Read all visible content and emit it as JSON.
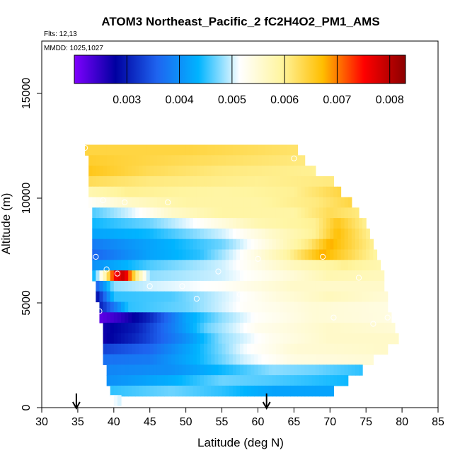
{
  "chart_data": {
    "type": "heatmap",
    "title": "ATOM3 Northeast_Pacific_2 fC2H4O2_PM1_AMS",
    "flights_text": "Flts: 12,13",
    "mmdd_text": "MMDD: 1025,1027",
    "xlabel": "Latitude (deg N)",
    "ylabel": "Altitude (m)",
    "xlim": [
      30,
      85
    ],
    "ylim": [
      0,
      17500
    ],
    "xticks": [
      30,
      35,
      40,
      45,
      50,
      55,
      60,
      65,
      70,
      75,
      80,
      85
    ],
    "xtick_labels": [
      "30",
      "35",
      "40",
      "45",
      "50",
      "55",
      "60",
      "65",
      "70",
      "75",
      "80",
      "85"
    ],
    "yticks": [
      0,
      5000,
      10000,
      15000
    ],
    "ytick_labels": [
      "0",
      "5000",
      "10000",
      "15000"
    ],
    "colorbar": {
      "range": [
        0.002,
        0.0083
      ],
      "ticks": [
        0.003,
        0.004,
        0.005,
        0.006,
        0.007,
        0.008
      ],
      "tick_labels": [
        "0.003",
        "0.004",
        "0.005",
        "0.006",
        "0.007",
        "0.008"
      ],
      "colors": [
        "#7f00ff",
        "#0000a0",
        "#1e64f0",
        "#00b4ff",
        "#ffffff",
        "#fff5a0",
        "#ffbe00",
        "#ff0000",
        "#8b0000"
      ]
    },
    "arrows": [
      34.8,
      61.2
    ],
    "layers": [
      {
        "alt": 12300,
        "lat_min": 36.0,
        "lat_max": 65.5,
        "points": [
          [
            36.0,
            0.0064
          ],
          [
            50.0,
            0.0064
          ],
          [
            65.5,
            0.0062
          ]
        ]
      },
      {
        "alt": 11800,
        "lat_min": 36.5,
        "lat_max": 66.5,
        "points": [
          [
            36.5,
            0.0065
          ],
          [
            50.0,
            0.0063
          ],
          [
            66.5,
            0.0061
          ]
        ]
      },
      {
        "alt": 11300,
        "lat_min": 36.5,
        "lat_max": 68.0,
        "points": [
          [
            36.5,
            0.0066
          ],
          [
            45.0,
            0.0063
          ],
          [
            55.0,
            0.0061
          ],
          [
            68.0,
            0.006
          ]
        ]
      },
      {
        "alt": 10800,
        "lat_min": 36.5,
        "lat_max": 70.5,
        "points": [
          [
            36.5,
            0.0063
          ],
          [
            45.0,
            0.0061
          ],
          [
            60.0,
            0.006
          ],
          [
            70.5,
            0.0061
          ]
        ]
      },
      {
        "alt": 10300,
        "lat_min": 36.5,
        "lat_max": 71.5,
        "points": [
          [
            36.5,
            0.0058
          ],
          [
            42.0,
            0.006
          ],
          [
            55.0,
            0.0059
          ],
          [
            65.0,
            0.006
          ],
          [
            71.5,
            0.0064
          ]
        ]
      },
      {
        "alt": 9800,
        "lat_min": 36.5,
        "lat_max": 73.0,
        "points": [
          [
            36.5,
            0.0052
          ],
          [
            42.0,
            0.0056
          ],
          [
            50.0,
            0.0059
          ],
          [
            60.0,
            0.0059
          ],
          [
            68.0,
            0.0061
          ],
          [
            73.0,
            0.0064
          ]
        ]
      },
      {
        "alt": 9300,
        "lat_min": 37.0,
        "lat_max": 74.0,
        "points": [
          [
            37.0,
            0.0046
          ],
          [
            42.0,
            0.005
          ],
          [
            48.0,
            0.0056
          ],
          [
            55.0,
            0.0059
          ],
          [
            65.0,
            0.0059
          ],
          [
            70.0,
            0.0063
          ],
          [
            74.0,
            0.0061
          ]
        ]
      },
      {
        "alt": 8800,
        "lat_min": 37.0,
        "lat_max": 75.0,
        "points": [
          [
            37.0,
            0.0044
          ],
          [
            45.0,
            0.0047
          ],
          [
            52.0,
            0.0052
          ],
          [
            60.0,
            0.0058
          ],
          [
            68.0,
            0.006
          ],
          [
            71.0,
            0.0066
          ],
          [
            75.0,
            0.006
          ]
        ]
      },
      {
        "alt": 8300,
        "lat_min": 37.0,
        "lat_max": 75.5,
        "points": [
          [
            37.0,
            0.0042
          ],
          [
            45.0,
            0.0044
          ],
          [
            55.0,
            0.005
          ],
          [
            62.0,
            0.0056
          ],
          [
            68.0,
            0.006
          ],
          [
            71.0,
            0.0067
          ],
          [
            75.5,
            0.006
          ]
        ]
      },
      {
        "alt": 7800,
        "lat_min": 37.0,
        "lat_max": 76.0,
        "points": [
          [
            37.0,
            0.0038
          ],
          [
            45.0,
            0.0042
          ],
          [
            55.0,
            0.0047
          ],
          [
            62.0,
            0.0055
          ],
          [
            67.0,
            0.0061
          ],
          [
            70.0,
            0.0068
          ],
          [
            76.0,
            0.006
          ]
        ]
      },
      {
        "alt": 7300,
        "lat_min": 37.0,
        "lat_max": 76.5,
        "points": [
          [
            37.0,
            0.0036
          ],
          [
            45.0,
            0.0042
          ],
          [
            52.0,
            0.0045
          ],
          [
            58.0,
            0.0052
          ],
          [
            64.0,
            0.0059
          ],
          [
            69.0,
            0.0068
          ],
          [
            76.5,
            0.0059
          ]
        ]
      },
      {
        "alt": 6800,
        "lat_min": 37.0,
        "lat_max": 77.0,
        "points": [
          [
            37.0,
            0.004
          ],
          [
            45.0,
            0.0046
          ],
          [
            55.0,
            0.005
          ],
          [
            65.0,
            0.0057
          ],
          [
            72.0,
            0.006
          ],
          [
            77.0,
            0.0058
          ]
        ]
      },
      {
        "alt": 6300,
        "lat_min": 37.0,
        "lat_max": 77.5,
        "points": [
          [
            37.0,
            0.0042
          ],
          [
            39.0,
            0.006
          ],
          [
            40.0,
            0.0075
          ],
          [
            41.5,
            0.0079
          ],
          [
            43.0,
            0.0062
          ],
          [
            45.0,
            0.0048
          ],
          [
            55.0,
            0.005
          ],
          [
            65.0,
            0.0055
          ],
          [
            70.0,
            0.0058
          ],
          [
            77.5,
            0.0057
          ]
        ]
      },
      {
        "alt": 5800,
        "lat_min": 37.5,
        "lat_max": 77.5,
        "points": [
          [
            37.5,
            0.0035
          ],
          [
            40.0,
            0.0048
          ],
          [
            45.0,
            0.005
          ],
          [
            55.0,
            0.0052
          ],
          [
            65.0,
            0.0056
          ],
          [
            77.5,
            0.0056
          ]
        ]
      },
      {
        "alt": 5300,
        "lat_min": 37.5,
        "lat_max": 78.0,
        "points": [
          [
            37.5,
            0.0028
          ],
          [
            40.0,
            0.0045
          ],
          [
            48.0,
            0.0046
          ],
          [
            55.0,
            0.005
          ],
          [
            62.0,
            0.0054
          ],
          [
            70.0,
            0.0057
          ],
          [
            78.0,
            0.0055
          ]
        ]
      },
      {
        "alt": 4800,
        "lat_min": 38.0,
        "lat_max": 78.0,
        "points": [
          [
            38.0,
            0.003
          ],
          [
            42.0,
            0.0045
          ],
          [
            50.0,
            0.0047
          ],
          [
            58.0,
            0.0052
          ],
          [
            68.0,
            0.0055
          ],
          [
            78.0,
            0.0054
          ]
        ]
      },
      {
        "alt": 4300,
        "lat_min": 38.0,
        "lat_max": 78.5,
        "points": [
          [
            38.0,
            0.0022
          ],
          [
            41.0,
            0.0025
          ],
          [
            45.0,
            0.0031
          ],
          [
            50.0,
            0.0042
          ],
          [
            55.0,
            0.0048
          ],
          [
            60.0,
            0.0052
          ],
          [
            68.0,
            0.0055
          ],
          [
            78.5,
            0.0054
          ]
        ]
      },
      {
        "alt": 3800,
        "lat_min": 38.5,
        "lat_max": 79.0,
        "points": [
          [
            38.5,
            0.0027
          ],
          [
            43.0,
            0.003
          ],
          [
            48.0,
            0.0038
          ],
          [
            53.0,
            0.0047
          ],
          [
            60.0,
            0.0053
          ],
          [
            70.0,
            0.0056
          ],
          [
            79.0,
            0.0055
          ]
        ]
      },
      {
        "alt": 3300,
        "lat_min": 38.5,
        "lat_max": 79.5,
        "points": [
          [
            38.5,
            0.0027
          ],
          [
            43.0,
            0.0031
          ],
          [
            50.0,
            0.004
          ],
          [
            55.0,
            0.0048
          ],
          [
            62.0,
            0.0053
          ],
          [
            70.0,
            0.0056
          ],
          [
            79.5,
            0.0056
          ]
        ]
      },
      {
        "alt": 2800,
        "lat_min": 38.5,
        "lat_max": 78.0,
        "points": [
          [
            38.5,
            0.0033
          ],
          [
            45.0,
            0.0036
          ],
          [
            52.0,
            0.0044
          ],
          [
            58.0,
            0.0051
          ],
          [
            65.0,
            0.0055
          ],
          [
            78.0,
            0.0056
          ]
        ]
      },
      {
        "alt": 2300,
        "lat_min": 38.5,
        "lat_max": 76.0,
        "points": [
          [
            38.5,
            0.0037
          ],
          [
            45.0,
            0.0038
          ],
          [
            52.0,
            0.0044
          ],
          [
            58.0,
            0.005
          ],
          [
            65.0,
            0.0054
          ],
          [
            76.0,
            0.0055
          ]
        ]
      },
      {
        "alt": 1800,
        "lat_min": 39.0,
        "lat_max": 74.5,
        "points": [
          [
            39.0,
            0.0039
          ],
          [
            48.0,
            0.004
          ],
          [
            55.0,
            0.0044
          ],
          [
            62.0,
            0.0048
          ],
          [
            68.0,
            0.0047
          ],
          [
            74.5,
            0.0045
          ]
        ]
      },
      {
        "alt": 1300,
        "lat_min": 39.0,
        "lat_max": 72.5,
        "points": [
          [
            39.0,
            0.004
          ],
          [
            48.0,
            0.0043
          ],
          [
            55.0,
            0.0047
          ],
          [
            62.0,
            0.0046
          ],
          [
            72.5,
            0.0044
          ]
        ]
      },
      {
        "alt": 800,
        "lat_min": 39.5,
        "lat_max": 70.5,
        "points": [
          [
            39.5,
            0.0045
          ],
          [
            48.0,
            0.0047
          ],
          [
            55.0,
            0.0045
          ],
          [
            62.0,
            0.0042
          ],
          [
            70.5,
            0.0042
          ]
        ]
      },
      {
        "alt": 350,
        "lat_min": 39.5,
        "lat_max": 41.0,
        "points": [
          [
            39.5,
            0.0052
          ],
          [
            41.0,
            0.005
          ]
        ]
      }
    ],
    "circles": [
      [
        36.0,
        12400
      ],
      [
        65.0,
        11900
      ],
      [
        72.0,
        10300
      ],
      [
        38.5,
        9900
      ],
      [
        41.5,
        9800
      ],
      [
        47.5,
        9800
      ],
      [
        37.5,
        7200
      ],
      [
        60.0,
        7100
      ],
      [
        69.0,
        7200
      ],
      [
        77.0,
        7500
      ],
      [
        39.0,
        6600
      ],
      [
        40.5,
        6400
      ],
      [
        54.5,
        6500
      ],
      [
        74.0,
        6200
      ],
      [
        45.0,
        5800
      ],
      [
        49.5,
        5800
      ],
      [
        57.5,
        5400
      ],
      [
        51.5,
        5200
      ],
      [
        38.0,
        4600
      ],
      [
        70.5,
        4300
      ],
      [
        76.0,
        4000
      ],
      [
        78.0,
        4300
      ]
    ]
  }
}
